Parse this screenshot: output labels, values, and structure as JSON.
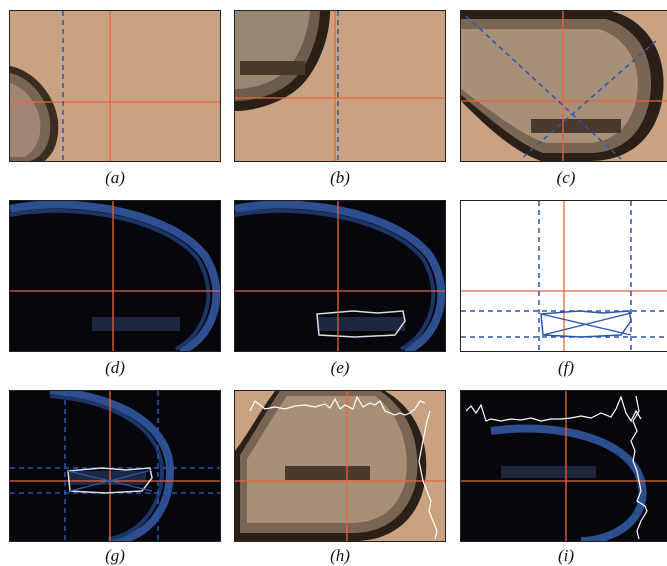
{
  "panels": [
    {
      "id": "a",
      "caption": "(a)",
      "background": "microscope",
      "letter": "a"
    },
    {
      "id": "b",
      "caption": "(b)",
      "background": "microscope",
      "letter": "b"
    },
    {
      "id": "c",
      "caption": "(c)",
      "background": "microscope",
      "letter": "c"
    },
    {
      "id": "d",
      "caption": "(d)",
      "background": "uv",
      "letter": "d"
    },
    {
      "id": "e",
      "caption": "(e)",
      "background": "uv",
      "letter": "e"
    },
    {
      "id": "f",
      "caption": "(f)",
      "background": "white",
      "letter": "f"
    },
    {
      "id": "g",
      "caption": "(g)",
      "background": "uv",
      "letter": "g"
    },
    {
      "id": "h",
      "caption": "(h)",
      "background": "microscope",
      "letter": "h"
    },
    {
      "id": "i",
      "caption": "(i)",
      "background": "uv",
      "letter": "i"
    }
  ],
  "colors": {
    "microscope_bg": "#c9a282",
    "uv_bg": "#05070d",
    "crosshair": "#e8643a",
    "guide": "#2a56b0",
    "outline": "#d8dde8",
    "loop_dark": "#2a2018",
    "loop_blue": "#3b6ab8"
  }
}
